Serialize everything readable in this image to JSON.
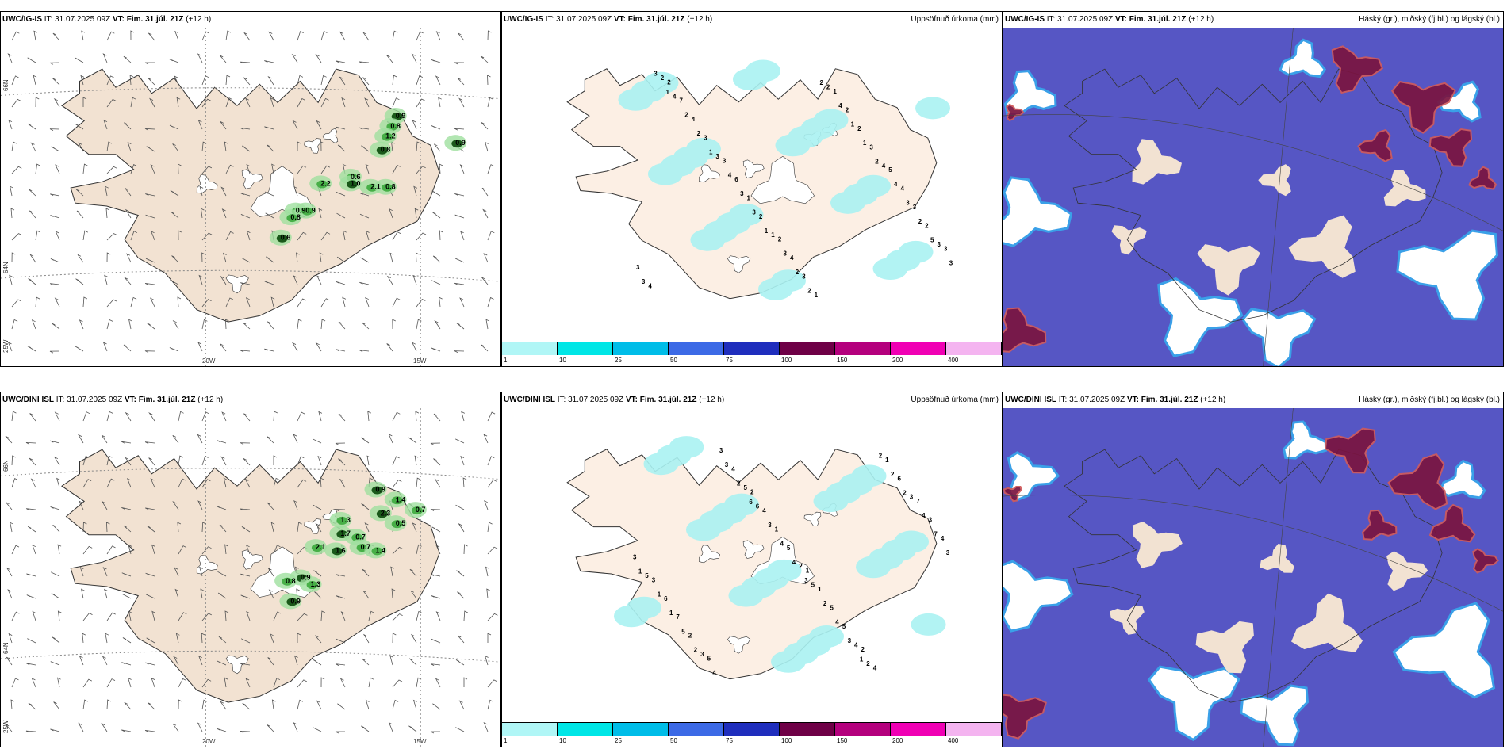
{
  "panels": [
    {
      "id": "p1",
      "row": 0,
      "col": 0,
      "model": "UWC/IG-IS",
      "it_label": "IT:",
      "it": "31.07.2025 09Z",
      "vt_label": "VT:",
      "vt": "Fim. 31.júl. 21Z",
      "lead": "(+12 h)",
      "title": ""
    },
    {
      "id": "p2",
      "row": 0,
      "col": 1,
      "model": "UWC/IG-IS",
      "it_label": "IT:",
      "it": "31.07.2025 09Z",
      "vt_label": "VT:",
      "vt": "Fim. 31.júl. 21Z",
      "lead": "(+12 h)",
      "title": "Uppsöfnuð úrkoma (mm)"
    },
    {
      "id": "p3",
      "row": 0,
      "col": 2,
      "model": "UWC/IG-IS",
      "it_label": "IT:",
      "it": "31.07.2025 09Z",
      "vt_label": "VT:",
      "vt": "Fim. 31.júl. 21Z",
      "lead": "(+12 h)",
      "title": "Háský (gr.), miðský (fj.bl.) og lágský (bl.)"
    },
    {
      "id": "p4",
      "row": 1,
      "col": 0,
      "model": "UWC/DINI ISL",
      "it_label": "IT:",
      "it": "31.07.2025 09Z",
      "vt_label": "VT:",
      "vt": "Fim. 31.júl. 21Z",
      "lead": "(+12 h)",
      "title": ""
    },
    {
      "id": "p5",
      "row": 1,
      "col": 1,
      "model": "UWC/DINI ISL",
      "it_label": "IT:",
      "it": "31.07.2025 09Z",
      "vt_label": "VT:",
      "vt": "Fim. 31.júl. 21Z",
      "lead": "(+12 h)",
      "title": "Uppsöfnuð úrkoma (mm)"
    },
    {
      "id": "p6",
      "row": 1,
      "col": 2,
      "model": "UWC/DINI ISL",
      "it_label": "IT:",
      "it": "31.07.2025 09Z",
      "vt_label": "VT:",
      "vt": "Fim. 31.júl. 21Z",
      "lead": "(+12 h)",
      "title": "Háský (gr.), miðský (fj.bl.) og lágský (bl.)"
    }
  ],
  "axes": {
    "lon": [
      "20W",
      "15W"
    ],
    "lat": [
      "66N",
      "64N",
      "25W"
    ]
  },
  "colorbar": {
    "ticks": [
      "1",
      "10",
      "25",
      "50",
      "75",
      "100",
      "150",
      "200",
      "400"
    ],
    "colors": [
      "#b0f6f6",
      "#00e6e6",
      "#00bde8",
      "#3c6ae6",
      "#1f2ebd",
      "#6e0046",
      "#b4007d",
      "#f000b4",
      "#f4b4f0"
    ]
  },
  "colors": {
    "land": "#f2e2d2",
    "land_precip": "#fcefe4",
    "glacier": "#ffffff",
    "coast": "#333333",
    "sea": "#ffffff",
    "green_light": "#9fe09f",
    "green_mid": "#3caa3c",
    "green_dark": "#0a4a0a",
    "cloud_low": "#5656c4",
    "cloud_mid": "#3aa0e8",
    "cloud_high": "#7a1440",
    "cloud_high_edge": "#d05a5a",
    "barb": "#555555",
    "grid": "#888888"
  },
  "labels": {
    "p1": [
      "0.9",
      "0.8",
      "1.2",
      "0.8",
      "0.6",
      "2.2",
      "1.0",
      "2.1",
      "0.8",
      "0.9",
      "0.9",
      "0.8",
      "0.6",
      "0.9"
    ],
    "p2": [
      "2",
      "3",
      "2",
      "1",
      "5",
      "3",
      "7",
      "6",
      "4",
      "2",
      "4",
      "3",
      "4",
      "1",
      "3",
      "2",
      "3",
      "4",
      "3",
      "2",
      "1",
      "3",
      "2",
      "2",
      "3",
      "1",
      "2",
      "4",
      "3",
      "4",
      "4",
      "3",
      "4",
      "4",
      "3",
      "2",
      "3",
      "2",
      "1",
      "3",
      "3",
      "2",
      "3",
      "2",
      "1",
      "2",
      "3",
      "1",
      "1",
      "2",
      "2",
      "5",
      "1"
    ],
    "p4": [
      "0.9",
      "1.4",
      "0.7",
      "2.3",
      "0.5",
      "1.3",
      "1.7",
      "0.7",
      "2.1",
      "1.6",
      "0.7",
      "1.4",
      "0.9",
      "0.8",
      "1.3",
      "0.9"
    ],
    "p5": [
      "2",
      "1",
      "2",
      "7",
      "3",
      "5",
      "4",
      "1",
      "4",
      "3",
      "6",
      "3",
      "1",
      "5",
      "1",
      "4",
      "7",
      "4",
      "5",
      "5",
      "6",
      "3",
      "2",
      "5",
      "2",
      "4",
      "3",
      "5",
      "3",
      "6",
      "5",
      "2",
      "4",
      "1",
      "4",
      "3",
      "2",
      "2",
      "7",
      "1",
      "3",
      "4",
      "4",
      "2",
      "3",
      "5",
      "2",
      "4",
      "3",
      "2",
      "1",
      "2",
      "6",
      "3",
      "1"
    ]
  }
}
